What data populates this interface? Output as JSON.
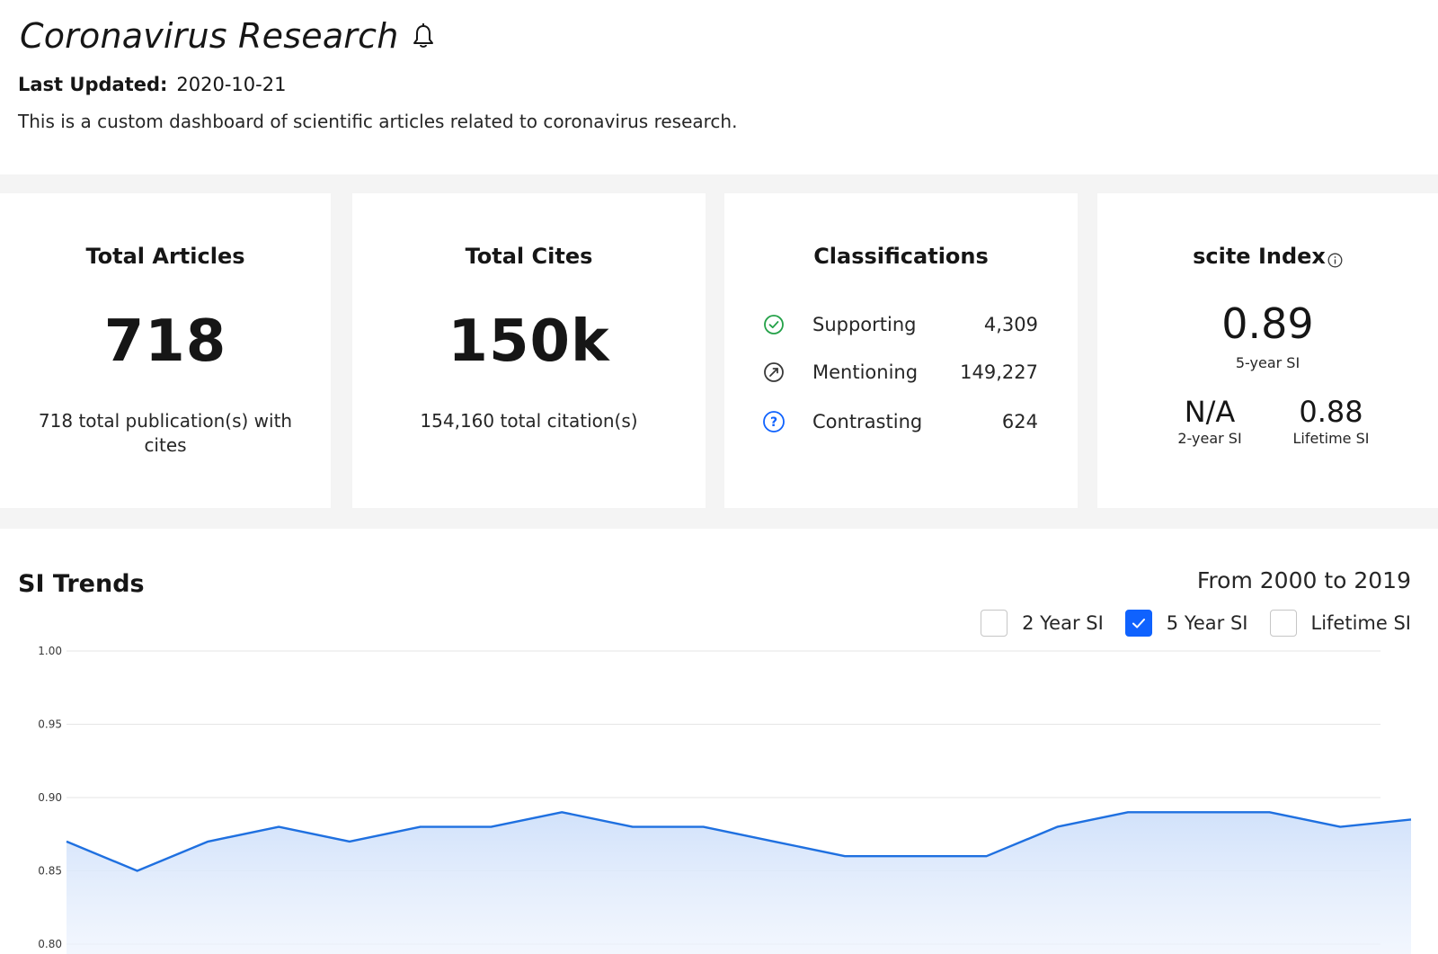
{
  "header": {
    "title": "Coronavirus Research",
    "updated_label": "Last Updated:",
    "updated_value": "2020-10-21",
    "description": "This is a custom dashboard of scientific articles related to coronavirus research."
  },
  "cards": {
    "articles": {
      "title": "Total Articles",
      "value": "718",
      "sub": "718 total publication(s) with cites"
    },
    "cites": {
      "title": "Total Cites",
      "value": "150k",
      "sub": "154,160 total citation(s)"
    },
    "classifications": {
      "title": "Classifications",
      "items": [
        {
          "label": "Supporting",
          "value": "4,309",
          "icon": "check-circle-icon",
          "color": "#24a148"
        },
        {
          "label": "Mentioning",
          "value": "149,227",
          "icon": "slash-circle-icon",
          "color": "#393939"
        },
        {
          "label": "Contrasting",
          "value": "624",
          "icon": "question-circle-icon",
          "color": "#0f62fe"
        }
      ]
    },
    "scite_index": {
      "title": "scite Index",
      "five_year_value": "0.89",
      "five_year_label": "5-year SI",
      "two_year_value": "N/A",
      "two_year_label": "2-year SI",
      "lifetime_value": "0.88",
      "lifetime_label": "Lifetime SI"
    }
  },
  "trends": {
    "title": "SI Trends",
    "range": "From 2000 to 2019",
    "toggles": [
      {
        "label": "2 Year SI",
        "checked": false
      },
      {
        "label": "5 Year SI",
        "checked": true
      },
      {
        "label": "Lifetime SI",
        "checked": false
      }
    ]
  },
  "chart_data": {
    "type": "area",
    "series": [
      {
        "values": [
          0.87,
          0.85,
          0.87,
          0.88,
          0.87,
          0.88,
          0.88,
          0.89,
          0.88,
          0.88,
          0.87,
          0.86,
          0.86,
          0.86,
          0.88,
          0.89,
          0.89,
          0.89,
          0.88,
          0.885
        ]
      }
    ],
    "ylim": [
      0.8,
      1.0
    ],
    "yticks": [
      "1.00",
      "0.95",
      "0.90",
      "0.85",
      "0.80"
    ],
    "grid": true,
    "color": "#1f70e0",
    "fill_color": "#dbe8fb"
  }
}
